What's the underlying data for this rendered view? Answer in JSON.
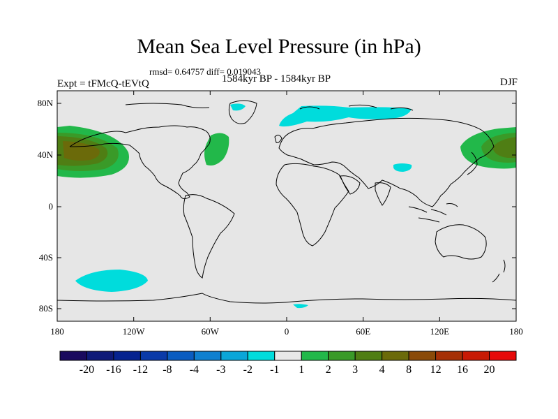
{
  "title": "Mean Sea Level Pressure (in hPa)",
  "stats": "rmsd= 0.64757 diff= 0.019043",
  "experiment": "Expt = tFMcQ-tEVtQ",
  "period": "1584kyr BP - 1584kyr BP",
  "season": "DJF",
  "lat_ticks": [
    "80N",
    "40N",
    "0",
    "40S",
    "80S"
  ],
  "lon_ticks": [
    "180",
    "120W",
    "60W",
    "0",
    "60E",
    "120E",
    "180"
  ],
  "colorbar": {
    "labels": [
      "-20",
      "-16",
      "-12",
      "-8",
      "-4",
      "-3",
      "-2",
      "-1",
      "1",
      "2",
      "3",
      "4",
      "8",
      "12",
      "16",
      "20"
    ],
    "colors": [
      "#1a0a5e",
      "#0f1a78",
      "#06238f",
      "#0a3aa8",
      "#0a5cc0",
      "#0f80cf",
      "#0aa6d8",
      "#00dcdc",
      "#e8e8e8",
      "#22b84a",
      "#3a9a28",
      "#4f7e14",
      "#6b6a0a",
      "#8a4a08",
      "#a53006",
      "#c81a04",
      "#e60a0a"
    ]
  },
  "colors": {
    "ocean": "#e6e6e6",
    "coast": "#000000",
    "pos1": "#22b84a",
    "pos2": "#3a9a28",
    "pos3": "#4f7e14",
    "pos4": "#6b6a0a",
    "neg1": "#00dcdc"
  }
}
